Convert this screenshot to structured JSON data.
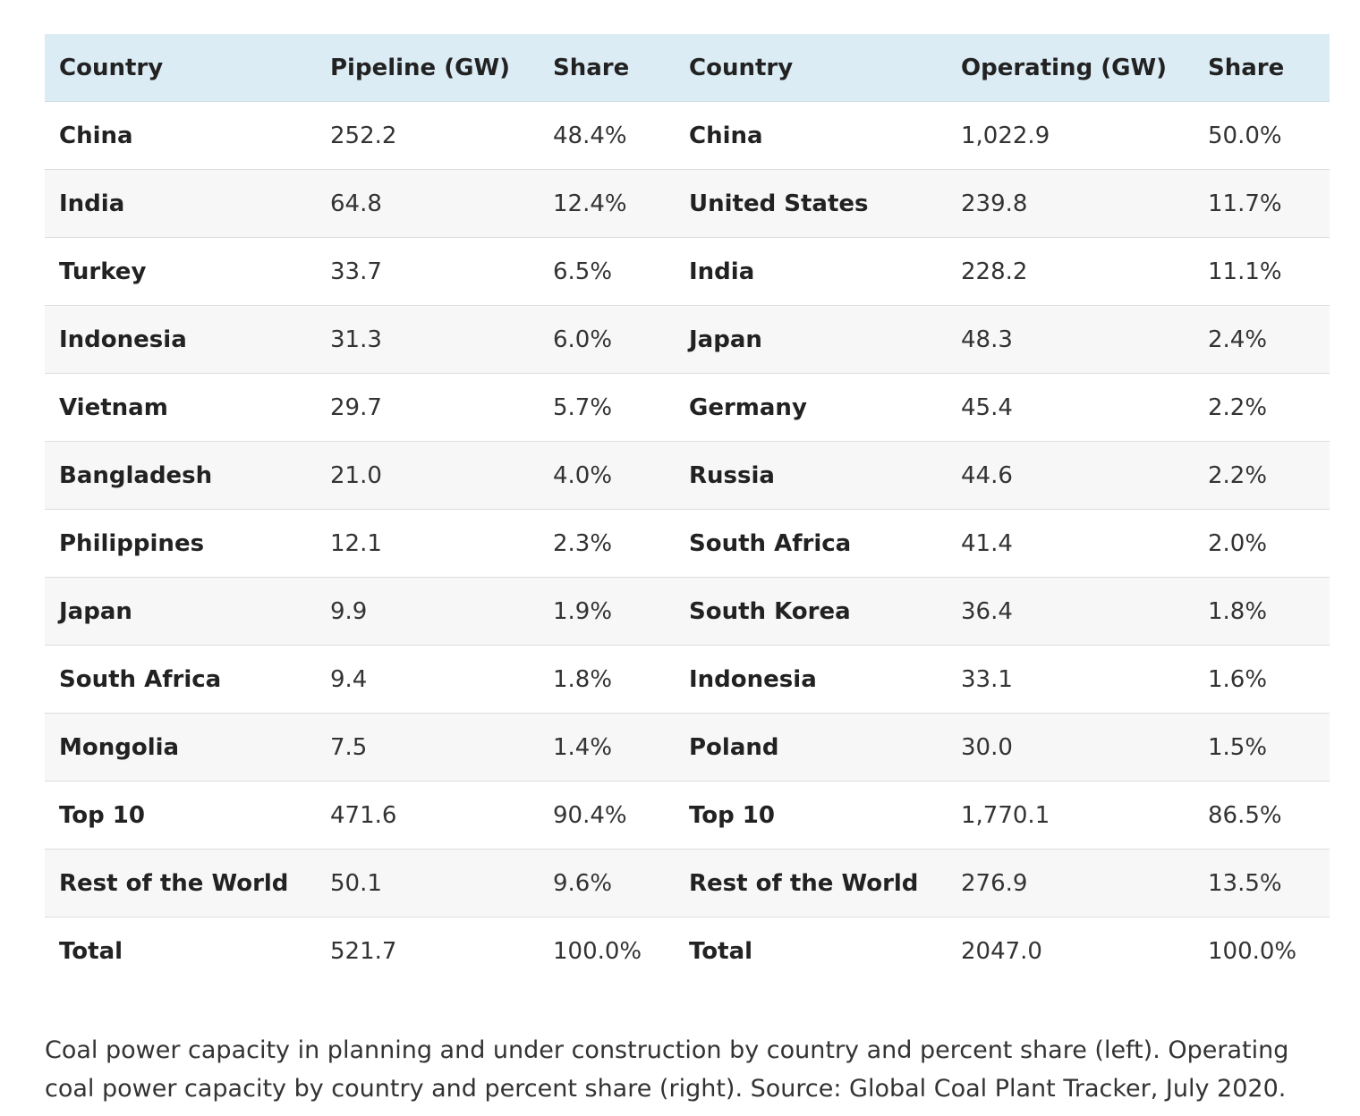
{
  "chart_data": {
    "type": "table",
    "columns": [
      "Country",
      "Pipeline (GW)",
      "Share",
      "Country",
      "Operating (GW)",
      "Share"
    ],
    "rows": [
      [
        "China",
        "252.2",
        "48.4%",
        "China",
        "1,022.9",
        "50.0%"
      ],
      [
        "India",
        "64.8",
        "12.4%",
        "United States",
        "239.8",
        "11.7%"
      ],
      [
        "Turkey",
        "33.7",
        "6.5%",
        "India",
        "228.2",
        "11.1%"
      ],
      [
        "Indonesia",
        "31.3",
        "6.0%",
        "Japan",
        "48.3",
        "2.4%"
      ],
      [
        "Vietnam",
        "29.7",
        "5.7%",
        "Germany",
        "45.4",
        "2.2%"
      ],
      [
        "Bangladesh",
        "21.0",
        "4.0%",
        "Russia",
        "44.6",
        "2.2%"
      ],
      [
        "Philippines",
        "12.1",
        "2.3%",
        "South Africa",
        "41.4",
        "2.0%"
      ],
      [
        "Japan",
        "9.9",
        "1.9%",
        "South Korea",
        "36.4",
        "1.8%"
      ],
      [
        "South Africa",
        "9.4",
        "1.8%",
        "Indonesia",
        "33.1",
        "1.6%"
      ],
      [
        "Mongolia",
        "7.5",
        "1.4%",
        "Poland",
        "30.0",
        "1.5%"
      ],
      [
        "Top 10",
        "471.6",
        "90.4%",
        "Top 10",
        "1,770.1",
        "86.5%"
      ],
      [
        "Rest of the World",
        "50.1",
        "9.6%",
        "Rest of the World",
        "276.9",
        "13.5%"
      ],
      [
        "Total",
        "521.7",
        "100.0%",
        "Total",
        "2047.0",
        "100.0%"
      ]
    ],
    "caption": "Coal power capacity in planning and under construction by country and percent share (left). Operating coal power capacity by country and percent share (right). Source: Global Coal Plant Tracker, July 2020."
  },
  "colors": {
    "header_background": "#dcecf5",
    "row_alt_background": "#f7f7f7",
    "row_border": "#dddddd"
  }
}
